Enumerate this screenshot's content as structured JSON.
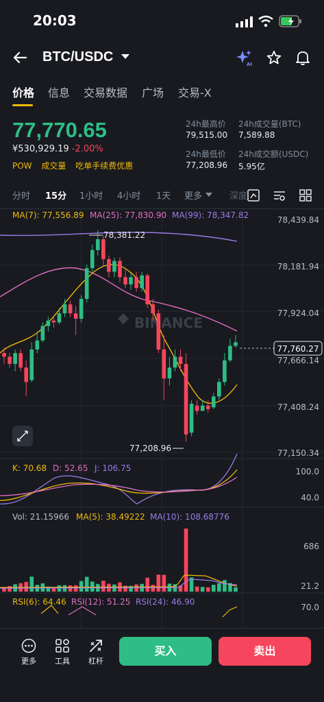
{
  "status_bar": {
    "time": "20:03"
  },
  "header": {
    "pair": "BTC/USDC"
  },
  "tabs": [
    "价格",
    "信息",
    "交易数据",
    "广场",
    "交易-X"
  ],
  "ticker": {
    "price": "77,770.65",
    "fiat": "¥530,929.19",
    "change": "-2.00%",
    "tags": [
      "POW",
      "成交量",
      "吃单手续费优惠"
    ],
    "high_label": "24h最高价",
    "high": "79,515.00",
    "vol_btc_label": "24h成交量(BTC)",
    "vol_btc": "7,589.88",
    "low_label": "24h最低价",
    "low": "77,208.96",
    "vol_usdc_label": "24h成交额(USDC)",
    "vol_usdc": "5.95亿"
  },
  "intervals": [
    "分时",
    "15分",
    "1小时",
    "4小时",
    "1天",
    "更多",
    "深度"
  ],
  "active_interval": "15分",
  "ma": {
    "ma7": "MA(7): 77,556.89",
    "ma25": "MA(25): 77,830.90",
    "ma99": "MA(99): 78,347.82"
  },
  "price_axis": [
    "78,439.84",
    "78,181.94",
    "77,924.04",
    "77,666.14",
    "77,408.24",
    "77,150.34"
  ],
  "current_price_tag": "77,760.27",
  "hi_marker": "78,381.22",
  "lo_marker": "77,208.96",
  "watermark": "BINANCE",
  "kdj": {
    "k": "K: 70.68",
    "d": "D: 52.65",
    "j": "J: 106.75",
    "axis_top": "100.0",
    "axis_mid": "40.0"
  },
  "vol": {
    "vol": "Vol: 21.15966",
    "ma5": "MA(5): 38.49222",
    "ma10": "MA(10): 108.68776",
    "axis_top": "686",
    "axis_bottom": "21.2"
  },
  "rsi": {
    "r6": "RSI(6): 64.46",
    "r12": "RSI(12): 51.25",
    "r24": "RSI(24): 46.90",
    "axis_top": "70.0"
  },
  "bottom_bar": {
    "more": "更多",
    "tools": "工具",
    "leverage": "杠杆",
    "buy": "买入",
    "sell": "卖出"
  },
  "colors": {
    "up": "#2ebd85",
    "down": "#f6465d",
    "accent": "#f0b90b",
    "ma7": "#f0b90b",
    "ma25": "#e36ec2",
    "ma99": "#9b7ce8"
  },
  "chart_data": {
    "type": "candlestick",
    "ylim": [
      77150.34,
      78439.84
    ],
    "candles": [
      {
        "o": 77700,
        "c": 77680,
        "h": 77730,
        "l": 77640
      },
      {
        "o": 77680,
        "c": 77640,
        "h": 77700,
        "l": 77620
      },
      {
        "o": 77640,
        "c": 77700,
        "h": 77720,
        "l": 77600
      },
      {
        "o": 77700,
        "c": 77620,
        "h": 77720,
        "l": 77600
      },
      {
        "o": 77620,
        "c": 77540,
        "h": 77660,
        "l": 77460
      },
      {
        "o": 77550,
        "c": 77720,
        "h": 77760,
        "l": 77540
      },
      {
        "o": 77720,
        "c": 77770,
        "h": 77820,
        "l": 77700
      },
      {
        "o": 77770,
        "c": 77850,
        "h": 77870,
        "l": 77760
      },
      {
        "o": 77850,
        "c": 77880,
        "h": 77900,
        "l": 77820
      },
      {
        "o": 77880,
        "c": 77870,
        "h": 77910,
        "l": 77840
      },
      {
        "o": 77870,
        "c": 77920,
        "h": 77950,
        "l": 77860
      },
      {
        "o": 77920,
        "c": 77970,
        "h": 78000,
        "l": 77900
      },
      {
        "o": 77970,
        "c": 77920,
        "h": 77990,
        "l": 77900
      },
      {
        "o": 77920,
        "c": 77890,
        "h": 77960,
        "l": 77800
      },
      {
        "o": 77890,
        "c": 78000,
        "h": 78020,
        "l": 77870
      },
      {
        "o": 78000,
        "c": 78170,
        "h": 78190,
        "l": 77980
      },
      {
        "o": 78170,
        "c": 78270,
        "h": 78300,
        "l": 78150
      },
      {
        "o": 78270,
        "c": 78330,
        "h": 78381,
        "l": 78240
      },
      {
        "o": 78330,
        "c": 78220,
        "h": 78350,
        "l": 78180
      },
      {
        "o": 78220,
        "c": 78150,
        "h": 78240,
        "l": 78120
      },
      {
        "o": 78150,
        "c": 78210,
        "h": 78230,
        "l": 78120
      },
      {
        "o": 78210,
        "c": 78120,
        "h": 78230,
        "l": 78090
      },
      {
        "o": 78120,
        "c": 78080,
        "h": 78160,
        "l": 78060
      },
      {
        "o": 78080,
        "c": 78120,
        "h": 78140,
        "l": 78050
      },
      {
        "o": 78120,
        "c": 78060,
        "h": 78150,
        "l": 78040
      },
      {
        "o": 78060,
        "c": 78130,
        "h": 78150,
        "l": 78040
      },
      {
        "o": 78130,
        "c": 77970,
        "h": 78140,
        "l": 77950
      },
      {
        "o": 77970,
        "c": 77920,
        "h": 78000,
        "l": 77880
      },
      {
        "o": 77920,
        "c": 77720,
        "h": 77940,
        "l": 77700
      },
      {
        "o": 77720,
        "c": 77560,
        "h": 77800,
        "l": 77440
      },
      {
        "o": 77560,
        "c": 77620,
        "h": 77680,
        "l": 77520
      },
      {
        "o": 77620,
        "c": 77680,
        "h": 77720,
        "l": 77600
      },
      {
        "o": 77680,
        "c": 77640,
        "h": 77720,
        "l": 77600
      },
      {
        "o": 77640,
        "c": 77250,
        "h": 77700,
        "l": 77209
      },
      {
        "o": 77260,
        "c": 77420,
        "h": 77440,
        "l": 77240
      },
      {
        "o": 77410,
        "c": 77380,
        "h": 77440,
        "l": 77360
      },
      {
        "o": 77380,
        "c": 77410,
        "h": 77440,
        "l": 77380
      },
      {
        "o": 77410,
        "c": 77390,
        "h": 77440,
        "l": 77370
      },
      {
        "o": 77400,
        "c": 77460,
        "h": 77480,
        "l": 77390
      },
      {
        "o": 77460,
        "c": 77540,
        "h": 77560,
        "l": 77440
      },
      {
        "o": 77540,
        "c": 77660,
        "h": 77700,
        "l": 77520
      },
      {
        "o": 77660,
        "c": 77740,
        "h": 77780,
        "l": 77650
      },
      {
        "o": 77740,
        "c": 77760,
        "h": 77800,
        "l": 77730
      }
    ]
  }
}
